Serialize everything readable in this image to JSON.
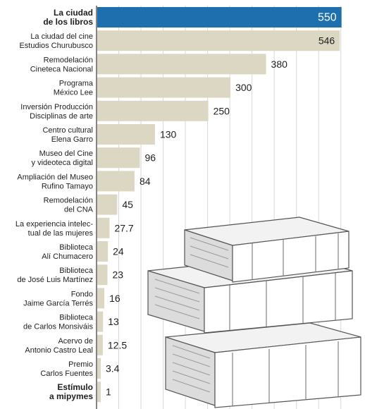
{
  "chart_data": {
    "type": "bar",
    "orientation": "horizontal",
    "title": "",
    "xlabel": "",
    "ylabel": "",
    "xlim": [
      0,
      560
    ],
    "grid": true,
    "categories": [
      [
        "La ciudad",
        "de los libros"
      ],
      [
        "La ciudad del cine",
        "Estudios Churubusco"
      ],
      [
        "Remodelación",
        "Cineteca Nacional"
      ],
      [
        "Programa",
        "México Lee"
      ],
      [
        "Inversión Producción",
        "Disciplinas de arte"
      ],
      [
        "Centro cultural",
        "Elena Garro"
      ],
      [
        "Museo del Cine",
        "y videoteca digital"
      ],
      [
        "Ampliación del Museo",
        "Rufino Tamayo"
      ],
      [
        "Remodelación",
        "del CNA"
      ],
      [
        "La experiencia intelec-",
        "tual de las mujeres"
      ],
      [
        "Biblioteca",
        "Alí Chumacero"
      ],
      [
        "Biblioteca",
        "de José Luis Martínez"
      ],
      [
        "Fondo",
        "Jaime García Terrés"
      ],
      [
        "Biblioteca",
        "de Carlos Monsiváis"
      ],
      [
        "Acervo de",
        "Antonio Castro Leal"
      ],
      [
        "Premio",
        "Carlos Fuentes"
      ],
      [
        "Estímulo",
        "a mipymes"
      ]
    ],
    "values": [
      550,
      546,
      380,
      300,
      250,
      130,
      96,
      84,
      45,
      27.7,
      24,
      23,
      16,
      13,
      12.5,
      3.4,
      1
    ],
    "value_labels": [
      "550",
      "546",
      "380",
      "300",
      "250",
      "130",
      "96",
      "84",
      "45",
      "27.7",
      "24",
      "23",
      "16",
      "13",
      "12.5",
      "3.4",
      "1"
    ],
    "highlight_index": 0,
    "bold_indices": [
      0,
      16
    ],
    "colors": {
      "bar": "#dcd7c2",
      "highlight": "#1e6fae",
      "grid": "#d8d8d8",
      "axis": "#333333"
    }
  },
  "illustration": {
    "icon": "stacked-books-icon"
  }
}
